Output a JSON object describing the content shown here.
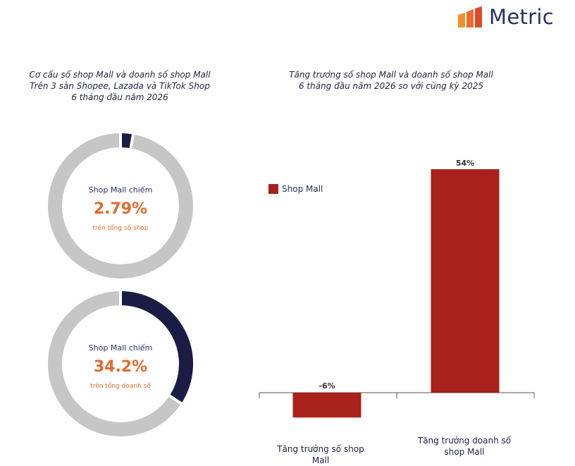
{
  "brand": {
    "name": "Metric",
    "bar_colors": [
      "#f0902f",
      "#ef6b2c",
      "#e04a2a"
    ]
  },
  "left_panel": {
    "title_lines": [
      "Cơ cấu số shop Mall và doanh số shop Mall",
      "Trên 3 sàn Shopee, Lazada và TikTok Shop",
      "6 tháng đầu năm 2026"
    ],
    "donuts": [
      {
        "label": "Shop Mall chiếm",
        "value_text": "2.79%",
        "share": 0.0279,
        "sub": "trên tổng số shop"
      },
      {
        "label": "Shop Mall chiếm",
        "value_text": "34.2%",
        "share": 0.342,
        "sub": "trên tổng doanh số"
      }
    ],
    "colors": {
      "share": "#1b1c45",
      "rest": "#c6c6c6"
    }
  },
  "right_panel": {
    "title_lines": [
      "Tăng trưởng số shop Mall và doanh số shop Mall",
      "6 tháng đầu năm 2026 so với cùng kỳ 2025"
    ]
  },
  "chart_data": {
    "type": "bar",
    "categories": [
      "Tăng trưởng số shop Mall",
      "Tăng trưởng doanh số shop Mall"
    ],
    "category_label_lines": [
      [
        "Tăng trưởng số shop Mall"
      ],
      [
        "Tăng trưởng doanh số",
        "shop Mall"
      ]
    ],
    "series": [
      {
        "name": "Shop Mall",
        "values": [
          -6,
          54
        ],
        "color": "#a8211a"
      }
    ],
    "data_labels": [
      "-6%",
      "54%"
    ],
    "ylim": [
      -6,
      54
    ],
    "grid": false,
    "legend": "top-left"
  }
}
